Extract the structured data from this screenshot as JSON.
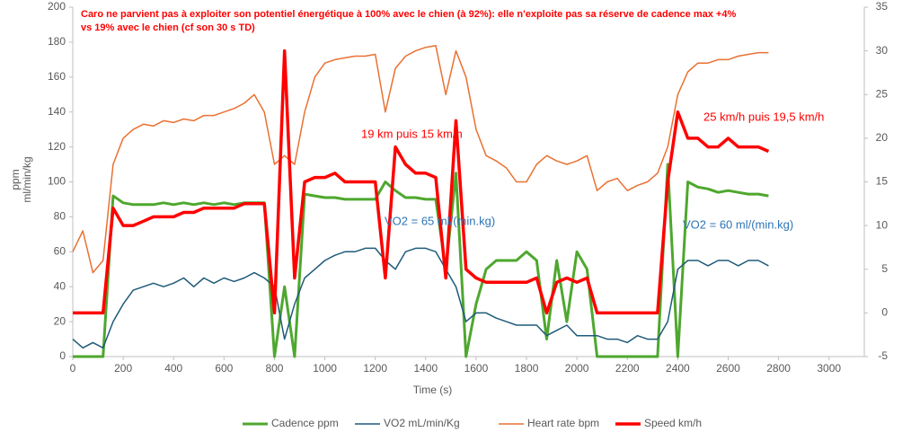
{
  "chart_data": {
    "type": "line",
    "title": "Caro ne parvient pas à exploiter son potentiel énergétique à 100% avec le chien (à 92%): elle n'exploite pas sa réserve de cadence max +4% vs 19% avec le chien (cf son 30 s TD)",
    "x_label": "Time (s)",
    "y_label": [
      "ppm",
      "ml/min/kg"
    ],
    "annotations": [
      "19 km puis 15 km/h",
      "VO2 = 65 ml/(min.kg)",
      "25 km/h puis 19,5 km/h",
      "VO2 = 60 ml/(min.kg)"
    ],
    "annotation_colors": [
      "#ff0000",
      "#2e75b6",
      "#ff0000",
      "#2e75b6"
    ],
    "x": [
      0,
      40,
      80,
      120,
      160,
      200,
      240,
      280,
      320,
      360,
      400,
      440,
      480,
      520,
      560,
      600,
      640,
      680,
      720,
      760,
      800,
      840,
      880,
      920,
      960,
      1000,
      1040,
      1080,
      1120,
      1160,
      1200,
      1240,
      1280,
      1320,
      1360,
      1400,
      1440,
      1480,
      1520,
      1560,
      1600,
      1640,
      1680,
      1720,
      1760,
      1800,
      1840,
      1880,
      1920,
      1960,
      2000,
      2040,
      2080,
      2120,
      2160,
      2200,
      2240,
      2280,
      2320,
      2360,
      2400,
      2440,
      2480,
      2520,
      2560,
      2600,
      2640,
      2680,
      2720,
      2760
    ],
    "series": [
      {
        "name": "Cadence ppm",
        "color": "#4ea72e",
        "width": 3,
        "values": [
          0,
          0,
          0,
          0,
          92,
          88,
          87,
          87,
          87,
          88,
          87,
          88,
          87,
          88,
          87,
          88,
          87,
          88,
          88,
          88,
          0,
          40,
          0,
          93,
          92,
          91,
          91,
          90,
          90,
          90,
          90,
          100,
          95,
          91,
          91,
          90,
          90,
          50,
          105,
          0,
          30,
          50,
          55,
          55,
          55,
          60,
          55,
          10,
          55,
          20,
          60,
          50,
          0,
          0,
          0,
          0,
          0,
          0,
          0,
          110,
          0,
          100,
          97,
          96,
          94,
          95,
          94,
          93,
          93,
          92
        ]
      },
      {
        "name": "VO2 mL/min/Kg",
        "color": "#1f5a7a",
        "width": 1.5,
        "values": [
          10,
          5,
          8,
          5,
          20,
          30,
          38,
          40,
          42,
          40,
          42,
          45,
          40,
          45,
          42,
          45,
          43,
          45,
          48,
          45,
          40,
          10,
          30,
          45,
          50,
          55,
          58,
          60,
          60,
          62,
          62,
          55,
          50,
          60,
          62,
          62,
          60,
          50,
          40,
          20,
          25,
          25,
          22,
          20,
          18,
          18,
          18,
          12,
          15,
          18,
          12,
          12,
          12,
          10,
          10,
          8,
          12,
          10,
          10,
          20,
          50,
          55,
          55,
          52,
          55,
          55,
          52,
          55,
          55,
          52
        ]
      },
      {
        "name": "Heart rate bpm",
        "color": "#e97132",
        "width": 1.5,
        "values": [
          60,
          72,
          48,
          55,
          110,
          125,
          130,
          133,
          132,
          135,
          134,
          136,
          135,
          138,
          138,
          140,
          142,
          145,
          150,
          140,
          110,
          115,
          110,
          140,
          160,
          168,
          170,
          171,
          172,
          172,
          173,
          140,
          165,
          172,
          175,
          177,
          178,
          150,
          175,
          160,
          130,
          115,
          112,
          108,
          100,
          100,
          110,
          115,
          112,
          110,
          112,
          115,
          95,
          100,
          102,
          95,
          98,
          100,
          105,
          120,
          150,
          163,
          168,
          168,
          170,
          170,
          172,
          173,
          174,
          174
        ]
      },
      {
        "name": "Speed km/h",
        "color": "#ff0000",
        "width": 3.5,
        "axis": "y2",
        "values": [
          0,
          0,
          0,
          0,
          12,
          10,
          10,
          10.5,
          11,
          11,
          11,
          11.5,
          11.5,
          12,
          12,
          12,
          12,
          12.5,
          12.5,
          12.5,
          0,
          30,
          4,
          15,
          15.5,
          15.5,
          16,
          15,
          15,
          15,
          15,
          4,
          19,
          17,
          16,
          16,
          15.5,
          4,
          22,
          5,
          4,
          3.5,
          3.5,
          3.5,
          3.5,
          3.5,
          4,
          0,
          3.5,
          4,
          3.5,
          4,
          0,
          0,
          0,
          0,
          0,
          0,
          0,
          15,
          23,
          20,
          20,
          19,
          19,
          20,
          19,
          19,
          19,
          18.5
        ]
      }
    ],
    "xlim": [
      0,
      3140
    ],
    "xticks": [
      0,
      200,
      400,
      600,
      800,
      1000,
      1200,
      1400,
      1600,
      1800,
      2000,
      2200,
      2400,
      2600,
      2800,
      3000
    ],
    "ylim": [
      0,
      200
    ],
    "yticks": [
      0,
      20,
      40,
      60,
      80,
      100,
      120,
      140,
      160,
      180,
      200
    ],
    "y2lim": [
      -5,
      35
    ],
    "y2ticks": [
      -5,
      0,
      5,
      10,
      15,
      20,
      25,
      30,
      35
    ],
    "legend": "bottom"
  }
}
